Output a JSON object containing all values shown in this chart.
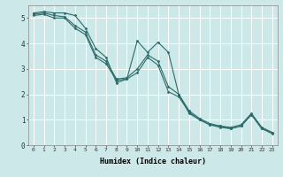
{
  "title": "",
  "xlabel": "Humidex (Indice chaleur)",
  "ylabel": "",
  "bg_color": "#cce8e8",
  "grid_color": "#ffffff",
  "line_color": "#2d6b6b",
  "xlim": [
    -0.5,
    23.5
  ],
  "ylim": [
    0,
    5.5
  ],
  "yticks": [
    0,
    1,
    2,
    3,
    4,
    5
  ],
  "xticks": [
    0,
    1,
    2,
    3,
    4,
    5,
    6,
    7,
    8,
    9,
    10,
    11,
    12,
    13,
    14,
    15,
    16,
    17,
    18,
    19,
    20,
    21,
    22,
    23
  ],
  "series": [
    {
      "x": [
        0,
        1,
        2,
        3,
        4,
        5,
        6,
        7,
        8,
        9,
        10,
        11,
        12,
        13,
        14,
        15,
        16,
        17,
        18,
        19,
        20,
        21,
        22,
        23
      ],
      "y": [
        5.2,
        5.25,
        5.2,
        5.2,
        5.1,
        4.6,
        3.8,
        3.45,
        2.45,
        2.6,
        4.1,
        3.65,
        4.05,
        3.65,
        2.0,
        1.25,
        1.0,
        0.8,
        0.75,
        0.65,
        0.75,
        1.2,
        0.65,
        0.5
      ]
    },
    {
      "x": [
        0,
        1,
        2,
        3,
        4,
        5,
        6,
        7,
        8,
        9,
        10,
        11,
        12,
        13,
        14,
        15,
        16,
        17,
        18,
        19,
        20,
        21,
        22,
        23
      ],
      "y": [
        5.15,
        5.2,
        5.1,
        5.05,
        4.7,
        4.45,
        3.55,
        3.3,
        2.6,
        2.65,
        3.0,
        3.55,
        3.3,
        2.3,
        2.0,
        1.35,
        1.05,
        0.85,
        0.75,
        0.7,
        0.8,
        1.25,
        0.7,
        0.5
      ]
    },
    {
      "x": [
        0,
        1,
        2,
        3,
        4,
        5,
        6,
        7,
        8,
        9,
        10,
        11,
        12,
        13,
        14,
        15,
        16,
        17,
        18,
        19,
        20,
        21,
        22,
        23
      ],
      "y": [
        5.1,
        5.15,
        5.0,
        5.0,
        4.6,
        4.35,
        3.45,
        3.2,
        2.55,
        2.6,
        2.85,
        3.45,
        3.15,
        2.1,
        1.9,
        1.3,
        1.0,
        0.8,
        0.7,
        0.65,
        0.75,
        1.2,
        0.65,
        0.45
      ]
    }
  ]
}
